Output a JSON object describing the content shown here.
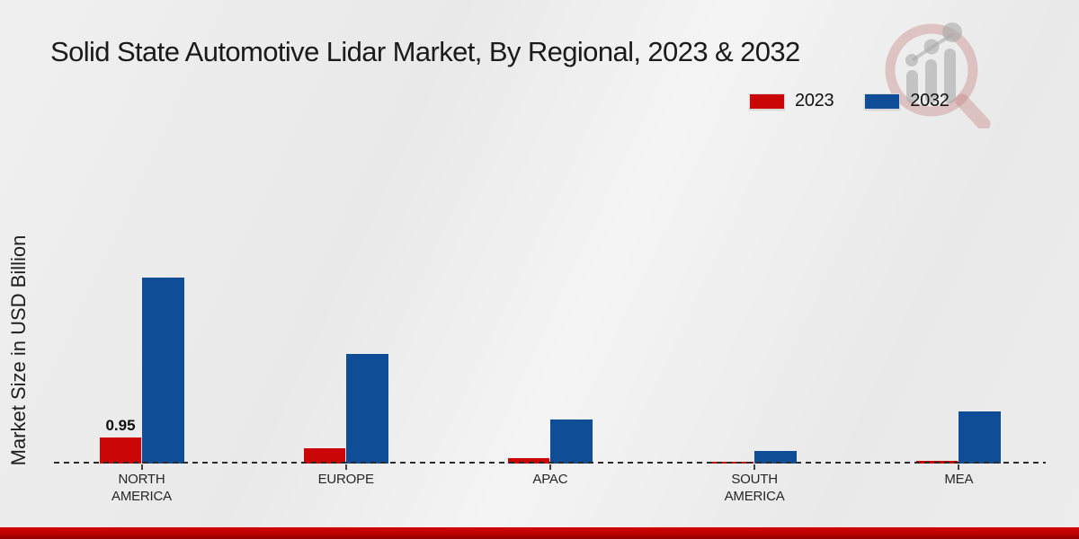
{
  "page": {
    "title": "Solid State Automotive Lidar Market, By Regional, 2023 & 2032",
    "y_axis_label": "Market Size in USD Billion"
  },
  "legend": [
    {
      "label": "2023",
      "color": "#cb0606"
    },
    {
      "label": "2032",
      "color": "#0f4e96"
    }
  ],
  "colors": {
    "series_2023": "#cb0606",
    "series_2032": "#0f4e96",
    "footer_bar": "#bd0000",
    "baseline": "#2a2a2a",
    "background": "#ededed",
    "title_text": "#1b1b1b",
    "watermark_pink": "#d9a8a8",
    "watermark_gray": "#bdbdbd"
  },
  "chart_data": {
    "type": "bar",
    "title": "Solid State Automotive Lidar Market, By Regional, 2023 & 2032",
    "categories": [
      "NORTH AMERICA",
      "EUROPE",
      "APAC",
      "SOUTH AMERICA",
      "MEA"
    ],
    "series": [
      {
        "name": "2023",
        "color": "#cb0606",
        "values": [
          0.95,
          0.55,
          0.2,
          0.05,
          0.1
        ],
        "data_labels": [
          "0.95",
          null,
          null,
          null,
          null
        ]
      },
      {
        "name": "2032",
        "color": "#0f4e96",
        "values": [
          6.8,
          4.0,
          1.6,
          0.45,
          1.9
        ],
        "data_labels": [
          null,
          null,
          null,
          null,
          null
        ]
      }
    ],
    "xlabel": "",
    "ylabel": "Market Size in USD Billion",
    "ylim": [
      0,
      7.5
    ],
    "grid": false,
    "baseline_style": "dashed",
    "legend_position": "top-right"
  },
  "watermark": {
    "name": "market-research-magnifier-logo"
  }
}
